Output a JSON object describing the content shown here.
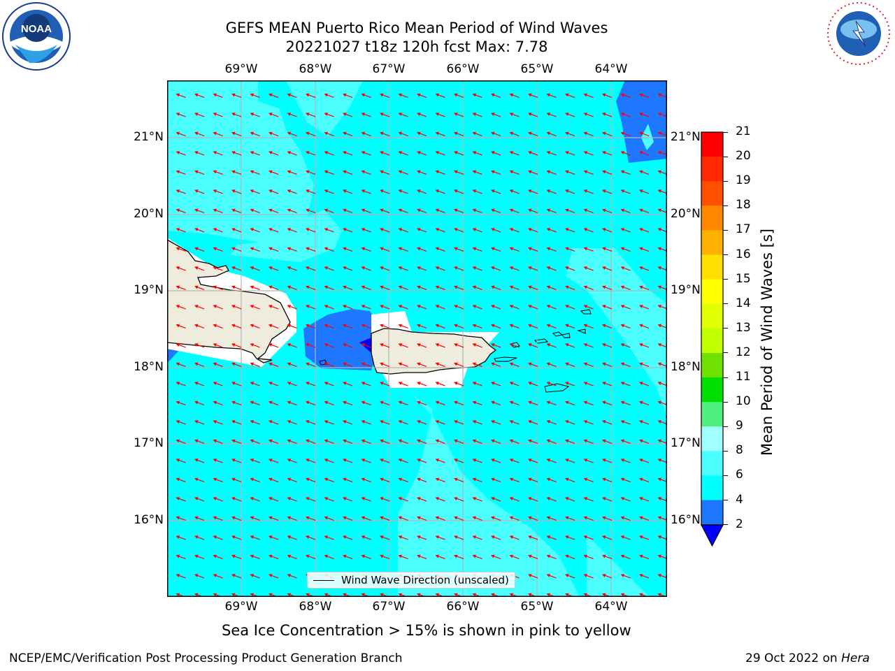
{
  "title_line1": "GEFS MEAN Puerto Rico Mean Period of Wind Waves",
  "title_line2": "20221027 t18z 120h fcst   Max: 7.78",
  "lon_labels": [
    "69°W",
    "68°W",
    "67°W",
    "66°W",
    "65°W",
    "64°W"
  ],
  "lat_labels": [
    "21°N",
    "20°N",
    "19°N",
    "18°N",
    "17°N",
    "16°N"
  ],
  "colorbar": {
    "label": "Mean Period of Wind Waves [s]",
    "ticks": [
      "21",
      "20",
      "19",
      "18",
      "17",
      "16",
      "15",
      "14",
      "13",
      "12",
      "11",
      "10",
      "9",
      "8",
      "6",
      "4",
      "2"
    ],
    "colors": {
      "2-4": "#1e78ff",
      "4-6": "#00ffff",
      "6-8": "#4cffff",
      "8-9": "#a0ffff",
      "9-10": "#50f080",
      "10-11": "#00e000",
      "11-12": "#70e000",
      "12-13": "#c0ff00",
      "13-14": "#e0ff00",
      "14-15": "#ffff00",
      "15-16": "#ffe000",
      "16-17": "#ffb000",
      "17-18": "#ff8800",
      "18-19": "#ff5000",
      "19-20": "#ff2800",
      "20-21": "#ff0000",
      "under": "#0000ff"
    }
  },
  "legend_label": "Wind Wave Direction (unscaled)",
  "sea_ice_note": "Sea Ice Concentration > 15% is shown in pink to yellow",
  "footer_left": "NCEP/EMC/Verification Post Processing Product Generation Branch",
  "footer_right_date": "29 Oct 2022 on ",
  "footer_right_host": "Hera",
  "logos": {
    "left": "NOAA",
    "right": "NATIONAL WEATHER SERVICE"
  },
  "colors": {
    "ocean": "#00ffff",
    "land": "#eeecdc",
    "arrow": "#ff0000",
    "grid": "#b4b4b4"
  }
}
